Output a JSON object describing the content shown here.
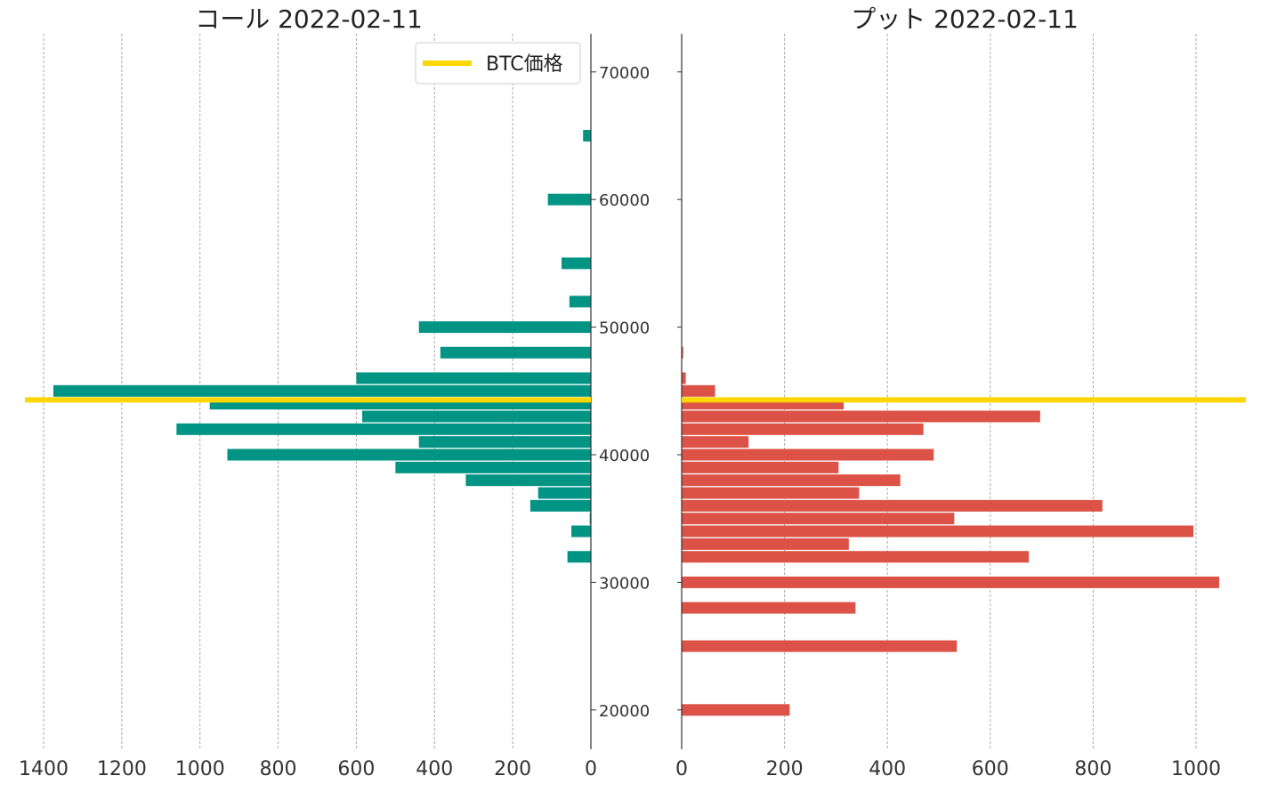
{
  "chart_data": {
    "type": "bar",
    "orientation": "horizontal",
    "price_line": {
      "label": "BTC価格",
      "value": 44300,
      "color": "#ffd700"
    },
    "y_axis": {
      "ticks": [
        20000,
        30000,
        40000,
        50000,
        60000,
        70000
      ],
      "ylim": [
        17000,
        73000
      ]
    },
    "strikes": [
      20000,
      25000,
      28000,
      30000,
      32000,
      33000,
      34000,
      35000,
      36000,
      37000,
      38000,
      39000,
      40000,
      41000,
      42000,
      43000,
      44000,
      45000,
      46000,
      47000,
      48000,
      50000,
      52000,
      55000,
      60000,
      65000
    ],
    "panels": [
      {
        "name": "call",
        "title": "コール 2022-02-11",
        "color": "#009485",
        "direction": "left",
        "xlim": [
          0,
          1450
        ],
        "x_ticks": [
          0,
          200,
          400,
          600,
          800,
          1000,
          1200,
          1400
        ],
        "values": [
          0,
          0,
          0,
          0,
          60,
          0,
          50,
          3,
          155,
          135,
          320,
          500,
          930,
          440,
          1060,
          585,
          975,
          1375,
          600,
          0,
          385,
          440,
          55,
          75,
          110,
          20
        ]
      },
      {
        "name": "put",
        "title": "プット 2022-02-11",
        "color": "#dc5246",
        "direction": "right",
        "xlim": [
          0,
          1100
        ],
        "x_ticks": [
          0,
          200,
          400,
          600,
          800,
          1000
        ],
        "values": [
          210,
          535,
          338,
          1045,
          675,
          325,
          995,
          530,
          818,
          345,
          425,
          305,
          490,
          130,
          470,
          697,
          315,
          65,
          8,
          0,
          3,
          0,
          0,
          0,
          0,
          0
        ]
      }
    ]
  }
}
